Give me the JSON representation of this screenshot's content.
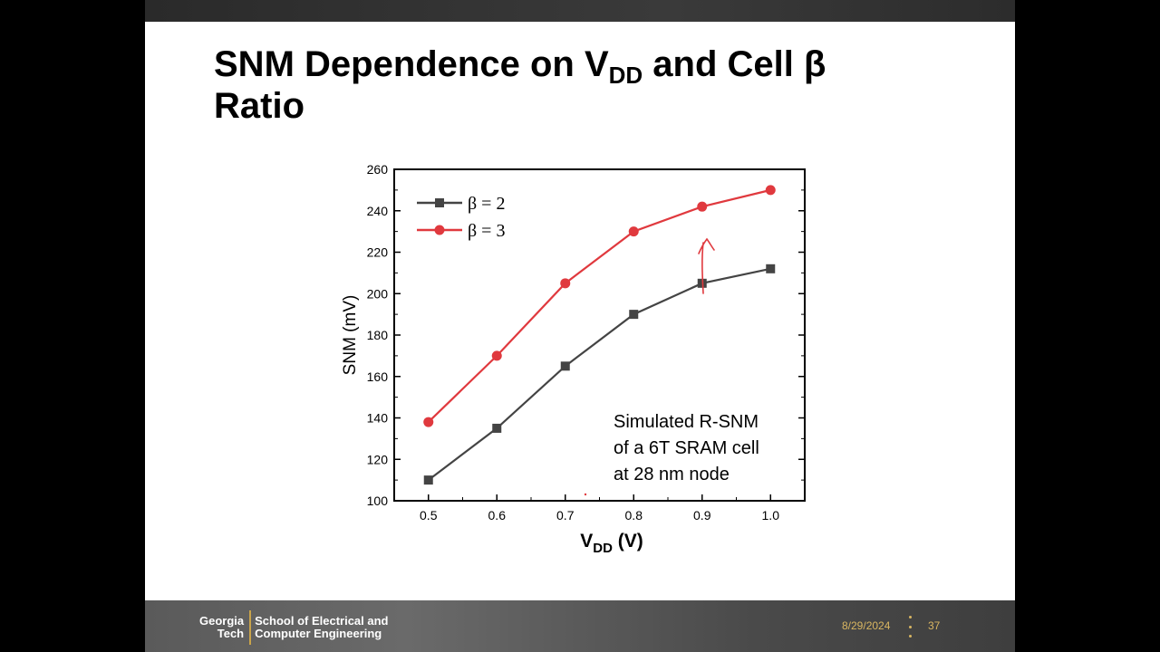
{
  "slide": {
    "title_part1": "SNM Dependence on V",
    "title_sub": "DD",
    "title_part2": " and Cell β",
    "title_line2": "Ratio"
  },
  "chart_data": {
    "type": "line",
    "x": [
      0.5,
      0.6,
      0.7,
      0.8,
      0.9,
      1.0
    ],
    "x_tick_labels": [
      "0.5",
      "0.6",
      "0.7",
      "0.8",
      "0.9",
      "1.0"
    ],
    "y_tick_labels": [
      "100",
      "120",
      "140",
      "160",
      "180",
      "200",
      "220",
      "240",
      "260"
    ],
    "xlim": [
      0.45,
      1.05
    ],
    "ylim": [
      100,
      260
    ],
    "xlabel_main": "V",
    "xlabel_sub": "DD",
    "xlabel_unit": " (V)",
    "ylabel": "SNM (mV)",
    "series": [
      {
        "name": "β = 2",
        "marker": "square",
        "color": "#444444",
        "values": [
          110,
          135,
          165,
          190,
          205,
          212
        ]
      },
      {
        "name": "β = 3",
        "marker": "circle",
        "color": "#e0393e",
        "values": [
          138,
          170,
          205,
          230,
          242,
          250
        ]
      }
    ],
    "annotation_lines": [
      "Simulated R-SNM",
      "of a 6T SRAM cell",
      "at 28 nm node"
    ],
    "legend_position": "top-left",
    "grid": false
  },
  "footer": {
    "logo_line1_left": "Georgia",
    "logo_line2_left": "Tech",
    "logo_line1_right": "School of Electrical and",
    "logo_line2_right": "Computer Engineering",
    "date": "8/29/2024",
    "page": "37"
  },
  "colors": {
    "accent_gold": "#d9b661",
    "series_red": "#e0393e",
    "series_gray": "#444444"
  }
}
